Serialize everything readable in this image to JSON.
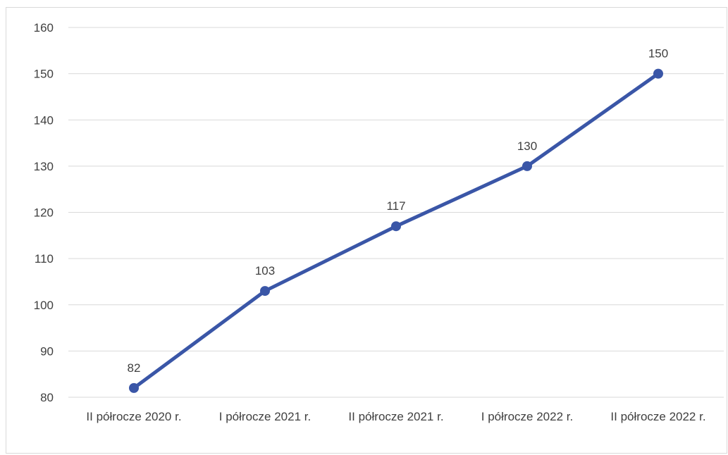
{
  "chart_data": {
    "type": "line",
    "title": "",
    "xlabel": "",
    "ylabel": "",
    "categories": [
      "II półrocze 2020 r.",
      "I półrocze 2021 r.",
      "II półrocze 2021 r.",
      "I półrocze 2022 r.",
      "II półrocze 2022 r."
    ],
    "series": [
      {
        "values": [
          82,
          103,
          117,
          130,
          150
        ],
        "color": "#3a56a7"
      }
    ],
    "ylim": [
      80,
      160
    ],
    "yticks": [
      80,
      90,
      100,
      110,
      120,
      130,
      140,
      150,
      160
    ],
    "grid": true,
    "legend": "none",
    "data_labels": true
  }
}
